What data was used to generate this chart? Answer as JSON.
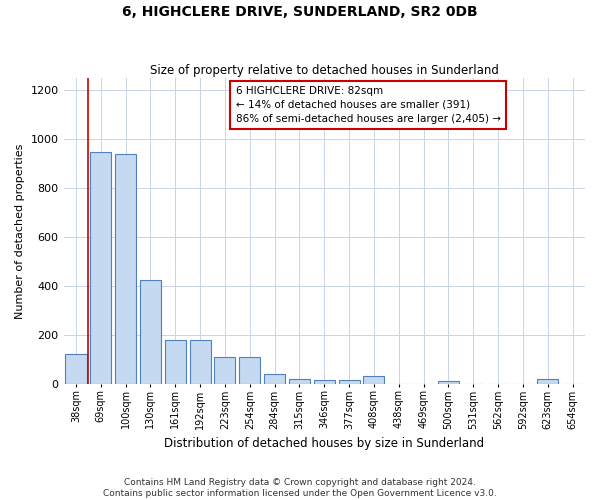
{
  "title": "6, HIGHCLERE DRIVE, SUNDERLAND, SR2 0DB",
  "subtitle": "Size of property relative to detached houses in Sunderland",
  "xlabel": "Distribution of detached houses by size in Sunderland",
  "ylabel": "Number of detached properties",
  "footer": "Contains HM Land Registry data © Crown copyright and database right 2024.\nContains public sector information licensed under the Open Government Licence v3.0.",
  "categories": [
    "38sqm",
    "69sqm",
    "100sqm",
    "130sqm",
    "161sqm",
    "192sqm",
    "223sqm",
    "254sqm",
    "284sqm",
    "315sqm",
    "346sqm",
    "377sqm",
    "408sqm",
    "438sqm",
    "469sqm",
    "500sqm",
    "531sqm",
    "562sqm",
    "592sqm",
    "623sqm",
    "654sqm"
  ],
  "values": [
    120,
    950,
    940,
    425,
    180,
    180,
    110,
    110,
    40,
    20,
    15,
    15,
    30,
    0,
    0,
    10,
    0,
    0,
    0,
    20,
    0
  ],
  "bar_color": "#c5d9f1",
  "bar_edge_color": "#4f81bd",
  "ylim": [
    0,
    1250
  ],
  "yticks": [
    0,
    200,
    400,
    600,
    800,
    1000,
    1200
  ],
  "red_line_x": 0.5,
  "annotation_line1": "6 HIGHCLERE DRIVE: 82sqm",
  "annotation_line2": "← 14% of detached houses are smaller (391)",
  "annotation_line3": "86% of semi-detached houses are larger (2,405) →",
  "annotation_box_color": "#ffffff",
  "annotation_border_color": "#cc0000",
  "red_line_color": "#cc0000",
  "background_color": "#ffffff",
  "grid_color": "#c8d4e8"
}
